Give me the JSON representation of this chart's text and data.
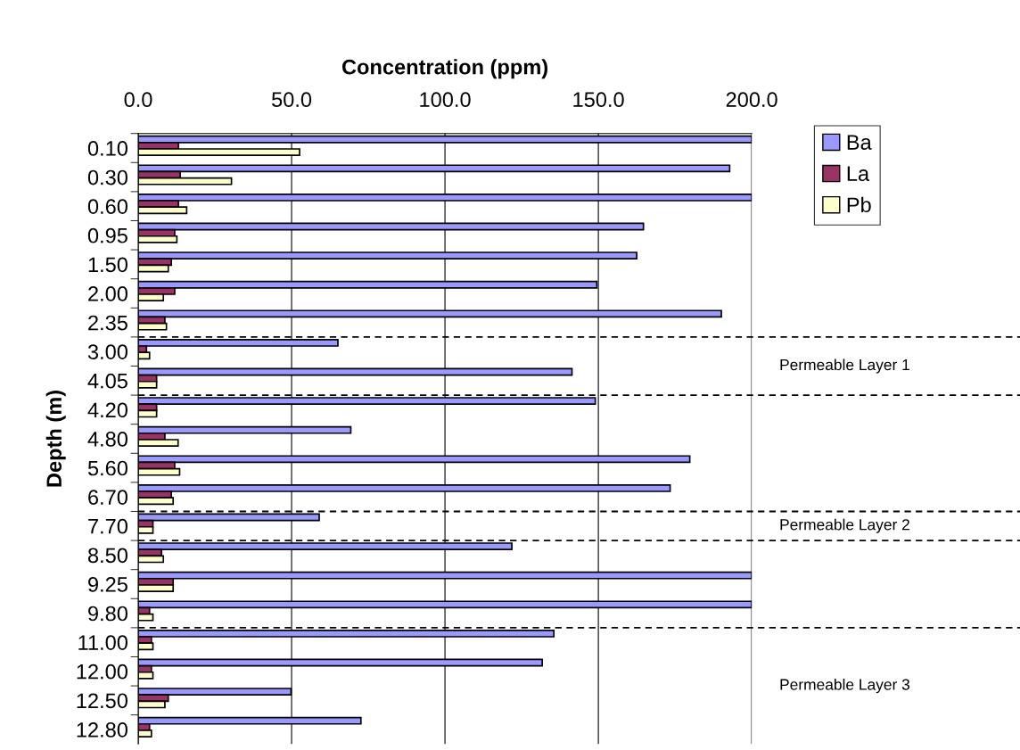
{
  "chart_data": {
    "type": "bar",
    "orientation": "horizontal",
    "xlabel": "Concentration (ppm)",
    "ylabel": "Depth (m)",
    "categories": [
      "0.10",
      "0.30",
      "0.60",
      "0.95",
      "1.50",
      "2.00",
      "2.35",
      "3.00",
      "4.05",
      "4.20",
      "4.80",
      "5.60",
      "6.70",
      "7.70",
      "8.50",
      "9.25",
      "9.80",
      "11.00",
      "12.00",
      "12.50",
      "12.80"
    ],
    "series": [
      {
        "name": "Ba",
        "color": "#9999ff",
        "values": [
          200,
          192.8,
          200,
          164.7,
          162.5,
          149.5,
          190.1,
          65.1,
          141.4,
          149.0,
          69.3,
          179.8,
          173.4,
          59.0,
          121.8,
          200,
          200,
          135.5,
          131.7,
          49.8,
          72.6
        ]
      },
      {
        "name": "La",
        "color": "#993366",
        "values": [
          13.1,
          13.7,
          13.1,
          11.9,
          10.8,
          11.9,
          8.7,
          2.7,
          6.0,
          6.0,
          8.7,
          11.9,
          10.8,
          4.8,
          7.6,
          11.4,
          3.7,
          4.3,
          4.3,
          9.8,
          3.7
        ]
      },
      {
        "name": "Pb",
        "color": "#ffffcc",
        "values": [
          52.6,
          30.4,
          15.8,
          12.6,
          9.8,
          8.2,
          9.2,
          3.7,
          6.0,
          6.0,
          13.0,
          13.5,
          11.4,
          4.8,
          8.2,
          11.4,
          4.8,
          4.8,
          4.8,
          8.7,
          4.3
        ]
      }
    ],
    "xlim": [
      0,
      200
    ],
    "xticks": [
      {
        "value": 0,
        "label": "0.0"
      },
      {
        "value": 50,
        "label": "50.0"
      },
      {
        "value": 100,
        "label": "100.0"
      },
      {
        "value": 150,
        "label": "150.0"
      },
      {
        "value": 200,
        "label": "200.0"
      }
    ],
    "grid": "x",
    "legend": "top right",
    "annotations": [
      "Permeable Layer 1",
      "Permeable Layer 2",
      "Permeable Layer 3"
    ]
  }
}
